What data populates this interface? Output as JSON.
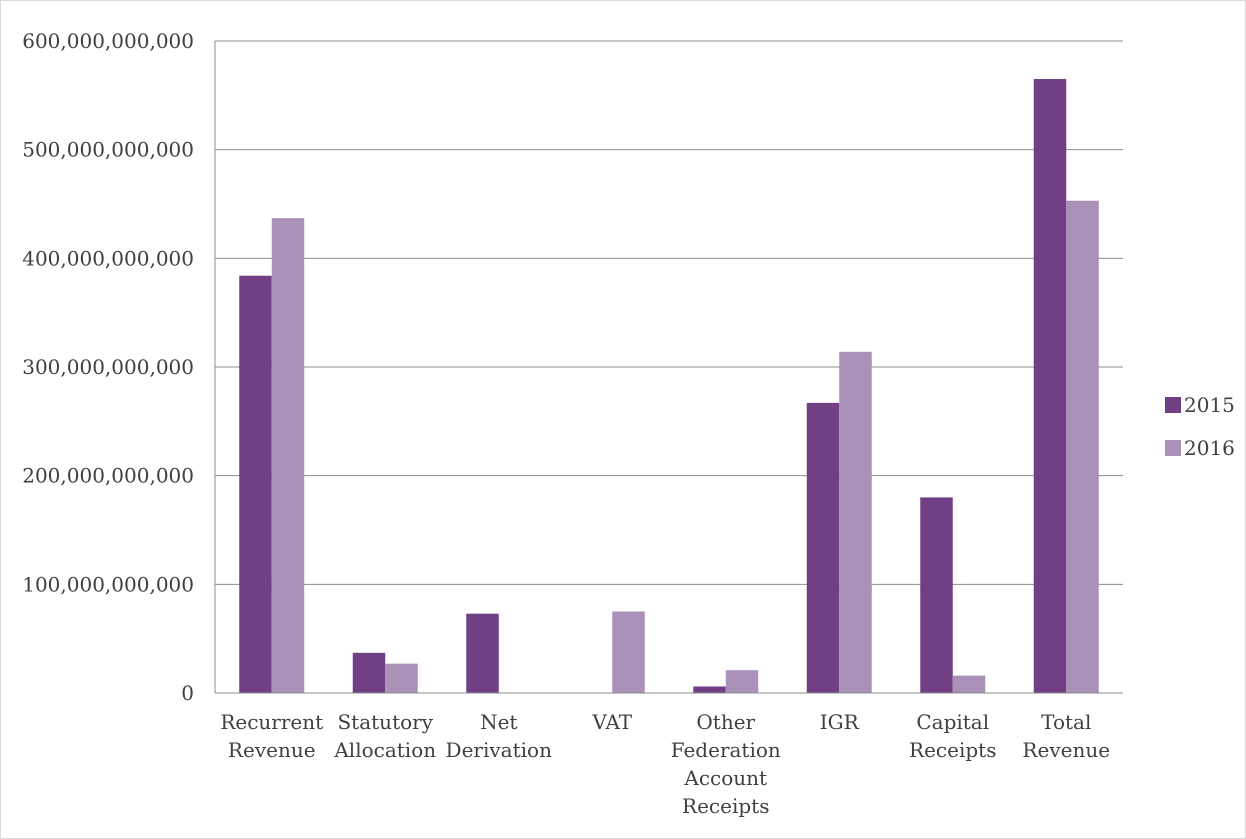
{
  "chart_data": {
    "type": "bar",
    "categories": [
      [
        "Recurrent",
        "Revenue"
      ],
      [
        "Statutory",
        "Allocation"
      ],
      [
        "Net",
        "Derivation"
      ],
      [
        "VAT"
      ],
      [
        "Other",
        "Federation",
        "Account",
        "Receipts"
      ],
      [
        "IGR"
      ],
      [
        "Capital",
        "Receipts"
      ],
      [
        "Total",
        "Revenue"
      ]
    ],
    "series": [
      {
        "name": "2015",
        "color": "#713f84",
        "values": [
          384000000000,
          37000000000,
          73000000000,
          0,
          6000000000,
          267000000000,
          180000000000,
          565000000000
        ]
      },
      {
        "name": "2016",
        "color": "#a991b8",
        "values": [
          437000000000,
          27000000000,
          0,
          75000000000,
          21000000000,
          314000000000,
          16000000000,
          453000000000
        ]
      }
    ],
    "ylim": [
      0,
      600000000000
    ],
    "yticks": [
      0,
      100000000000,
      200000000000,
      300000000000,
      400000000000,
      500000000000,
      600000000000
    ],
    "ytick_labels": [
      "0",
      "100,000,000,000",
      "200,000,000,000",
      "300,000,000,000",
      "400,000,000,000",
      "500,000,000,000",
      "600,000,000,000"
    ],
    "grid": true,
    "legend_position": "right",
    "title": "",
    "xlabel": "",
    "ylabel": ""
  }
}
